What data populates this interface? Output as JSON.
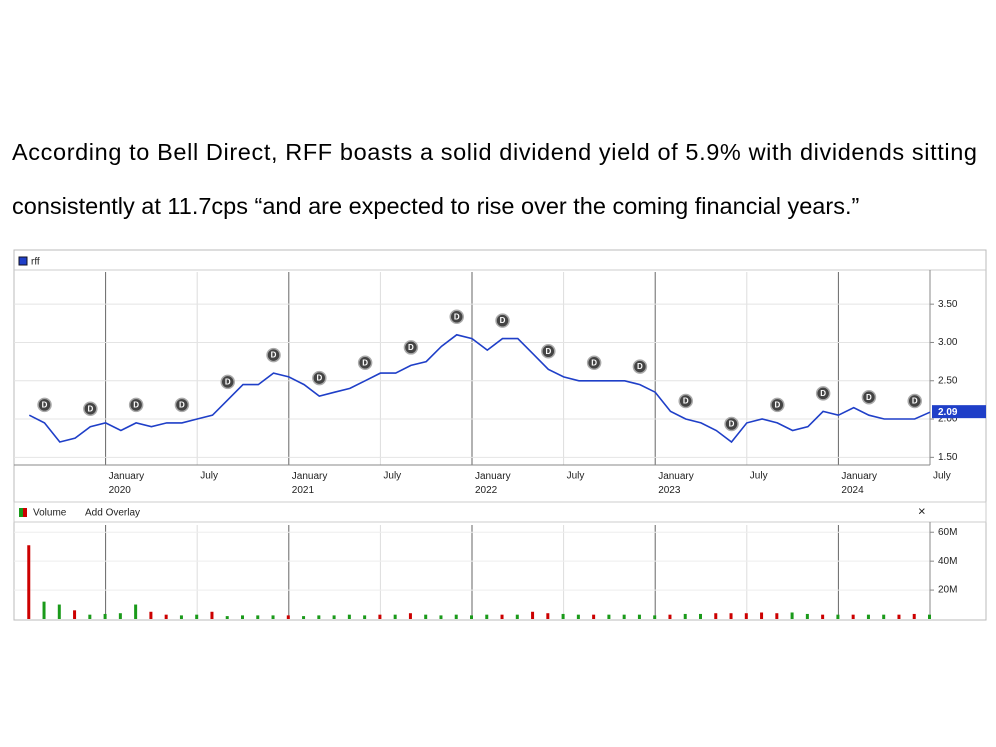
{
  "text": [
    "According to Bell Direct, RFF boasts a solid dividend yield of 5.9% with dividends sitting",
    "consistently at 11.7cps “and are expected to rise over the coming financial years.”"
  ],
  "chart_data": [
    {
      "type": "line",
      "x": [
        "2019-08",
        "2019-09",
        "2019-10",
        "2019-11",
        "2019-12",
        "2020-01",
        "2020-02",
        "2020-03",
        "2020-04",
        "2020-05",
        "2020-06",
        "2020-07",
        "2020-08",
        "2020-09",
        "2020-10",
        "2020-11",
        "2020-12",
        "2021-01",
        "2021-02",
        "2021-03",
        "2021-04",
        "2021-05",
        "2021-06",
        "2021-07",
        "2021-08",
        "2021-09",
        "2021-10",
        "2021-11",
        "2021-12",
        "2022-01",
        "2022-02",
        "2022-03",
        "2022-04",
        "2022-05",
        "2022-06",
        "2022-07",
        "2022-08",
        "2022-09",
        "2022-10",
        "2022-11",
        "2022-12",
        "2023-01",
        "2023-02",
        "2023-03",
        "2023-04",
        "2023-05",
        "2023-06",
        "2023-07",
        "2023-08",
        "2023-09",
        "2023-10",
        "2023-11",
        "2023-12",
        "2024-01",
        "2024-02",
        "2024-03",
        "2024-04",
        "2024-05",
        "2024-06",
        "2024-07"
      ],
      "series": [
        {
          "name": "rff",
          "color": "#1f3fc8",
          "values": [
            2.05,
            1.95,
            1.7,
            1.75,
            1.9,
            1.95,
            1.85,
            1.95,
            1.9,
            1.95,
            1.95,
            2.0,
            2.05,
            2.25,
            2.45,
            2.45,
            2.6,
            2.55,
            2.45,
            2.3,
            2.35,
            2.4,
            2.5,
            2.6,
            2.6,
            2.7,
            2.75,
            2.95,
            3.1,
            3.05,
            2.9,
            3.05,
            3.05,
            2.85,
            2.65,
            2.55,
            2.5,
            2.5,
            2.5,
            2.5,
            2.45,
            2.35,
            2.1,
            2.0,
            1.95,
            1.85,
            1.7,
            1.95,
            2.0,
            1.95,
            1.85,
            1.9,
            2.1,
            2.05,
            2.15,
            2.05,
            2.0,
            2.0,
            2.0,
            2.09
          ]
        }
      ],
      "xlim": [
        "2019-07",
        "2024-07"
      ],
      "xticks": [
        {
          "value": "2020-01",
          "label": "January 2020"
        },
        {
          "value": "2020-07",
          "label": "July"
        },
        {
          "value": "2021-01",
          "label": "January 2021"
        },
        {
          "value": "2021-07",
          "label": "July"
        },
        {
          "value": "2022-01",
          "label": "January 2022"
        },
        {
          "value": "2022-07",
          "label": "July"
        },
        {
          "value": "2023-01",
          "label": "January 2023"
        },
        {
          "value": "2023-07",
          "label": "July"
        },
        {
          "value": "2024-01",
          "label": "January 2024"
        },
        {
          "value": "2024-07",
          "label": "July"
        }
      ],
      "ylim": [
        1.4,
        3.92
      ],
      "yticks": [
        {
          "value": 1.5,
          "label": "1.50"
        },
        {
          "value": 2.0,
          "label": "2.00"
        },
        {
          "value": 2.5,
          "label": "2.50"
        },
        {
          "value": 3.0,
          "label": "3.00"
        },
        {
          "value": 3.5,
          "label": "3.50"
        }
      ],
      "grid": true,
      "dividend_label": "D",
      "dividend_dates": [
        "2019-09",
        "2019-12",
        "2020-03",
        "2020-06",
        "2020-09",
        "2020-12",
        "2021-03",
        "2021-06",
        "2021-09",
        "2021-12",
        "2022-03",
        "2022-06",
        "2022-09",
        "2022-12",
        "2023-03",
        "2023-06",
        "2023-09",
        "2023-12",
        "2024-03",
        "2024-06"
      ]
    },
    {
      "type": "bar",
      "x": [
        "2019-08",
        "2019-09",
        "2019-10",
        "2019-11",
        "2019-12",
        "2020-01",
        "2020-02",
        "2020-03",
        "2020-04",
        "2020-05",
        "2020-06",
        "2020-07",
        "2020-08",
        "2020-09",
        "2020-10",
        "2020-11",
        "2020-12",
        "2021-01",
        "2021-02",
        "2021-03",
        "2021-04",
        "2021-05",
        "2021-06",
        "2021-07",
        "2021-08",
        "2021-09",
        "2021-10",
        "2021-11",
        "2021-12",
        "2022-01",
        "2022-02",
        "2022-03",
        "2022-04",
        "2022-05",
        "2022-06",
        "2022-07",
        "2022-08",
        "2022-09",
        "2022-10",
        "2022-11",
        "2022-12",
        "2023-01",
        "2023-02",
        "2023-03",
        "2023-04",
        "2023-05",
        "2023-06",
        "2023-07",
        "2023-08",
        "2023-09",
        "2023-10",
        "2023-11",
        "2023-12",
        "2024-01",
        "2024-02",
        "2024-03",
        "2024-04",
        "2024-05",
        "2024-06",
        "2024-07"
      ],
      "series": [
        {
          "name": "Volume",
          "values": [
            51000000,
            12000000,
            10000000,
            6000000,
            3000000,
            3500000,
            4000000,
            10000000,
            5000000,
            3000000,
            2500000,
            3000000,
            5000000,
            2000000,
            2500000,
            2500000,
            2500000,
            2500000,
            2000000,
            2500000,
            2500000,
            3000000,
            2500000,
            3000000,
            3000000,
            4000000,
            3000000,
            2500000,
            3000000,
            2500000,
            3000000,
            3000000,
            3000000,
            5000000,
            4000000,
            3500000,
            3000000,
            3000000,
            3000000,
            3000000,
            3000000,
            2500000,
            3000000,
            3500000,
            3500000,
            4000000,
            4000000,
            4000000,
            4500000,
            4000000,
            4500000,
            3500000,
            3000000,
            3000000,
            3000000,
            3000000,
            3000000,
            3000000,
            3500000,
            3000000
          ],
          "colors": [
            "#cc0000",
            "#1a9a1a",
            "#1a9a1a",
            "#cc0000",
            "#1a9a1a",
            "#1a9a1a",
            "#1a9a1a",
            "#1a9a1a",
            "#cc0000",
            "#cc0000",
            "#1a9a1a",
            "#1a9a1a",
            "#cc0000",
            "#1a9a1a",
            "#1a9a1a",
            "#1a9a1a",
            "#1a9a1a",
            "#cc0000",
            "#1a9a1a",
            "#1a9a1a",
            "#1a9a1a",
            "#1a9a1a",
            "#1a9a1a",
            "#cc0000",
            "#1a9a1a",
            "#cc0000",
            "#1a9a1a",
            "#1a9a1a",
            "#1a9a1a",
            "#1a9a1a",
            "#1a9a1a",
            "#cc0000",
            "#1a9a1a",
            "#cc0000",
            "#cc0000",
            "#1a9a1a",
            "#1a9a1a",
            "#cc0000",
            "#1a9a1a",
            "#1a9a1a",
            "#1a9a1a",
            "#1a9a1a",
            "#cc0000",
            "#1a9a1a",
            "#1a9a1a",
            "#cc0000",
            "#cc0000",
            "#cc0000",
            "#cc0000",
            "#cc0000",
            "#1a9a1a",
            "#1a9a1a",
            "#cc0000",
            "#1a9a1a",
            "#cc0000",
            "#1a9a1a",
            "#1a9a1a",
            "#cc0000",
            "#cc0000",
            "#1a9a1a"
          ]
        }
      ],
      "xlim": [
        "2019-07",
        "2024-07"
      ],
      "ylim": [
        0,
        65000000
      ],
      "yticks": [
        {
          "value": 20000000,
          "label": "20M"
        },
        {
          "value": 40000000,
          "label": "40M"
        },
        {
          "value": 60000000,
          "label": "60M"
        }
      ],
      "overlay_link": "Add Overlay",
      "close": "×"
    }
  ]
}
